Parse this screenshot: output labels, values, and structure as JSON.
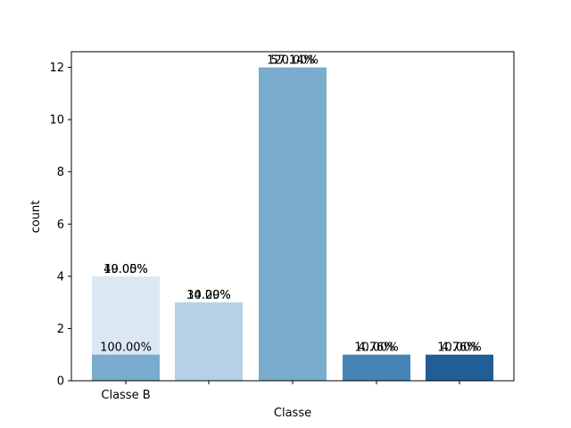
{
  "chart_data": {
    "type": "bar",
    "xlabel": "Classe",
    "ylabel": "count",
    "ylim": [
      0,
      12.6
    ],
    "yticks": [
      0,
      2,
      4,
      6,
      8,
      10,
      12
    ],
    "xtick_labels": [
      "Classe B",
      "",
      "",
      "",
      ""
    ],
    "grid": false,
    "bars": [
      {
        "slot": 0,
        "value": 4,
        "color": "#dbe8f4",
        "labels": [
          "40.00%",
          "19.05%"
        ]
      },
      {
        "slot": 0,
        "value": 1,
        "color": "#7aacce",
        "labels": [
          "100.00%"
        ]
      },
      {
        "slot": 1,
        "value": 3,
        "color": "#b6d1e5",
        "labels": [
          "30.00%",
          "14.29%"
        ]
      },
      {
        "slot": 2,
        "value": 12,
        "color": "#7aacce",
        "labels": [
          "120.00%",
          "57.14%"
        ]
      },
      {
        "slot": 3,
        "value": 1,
        "color": "#4684b8",
        "labels": [
          "10.00%",
          "4.76%"
        ]
      },
      {
        "slot": 4,
        "value": 1,
        "color": "#215d97",
        "labels": [
          "10.00%",
          "4.76%"
        ]
      }
    ]
  }
}
